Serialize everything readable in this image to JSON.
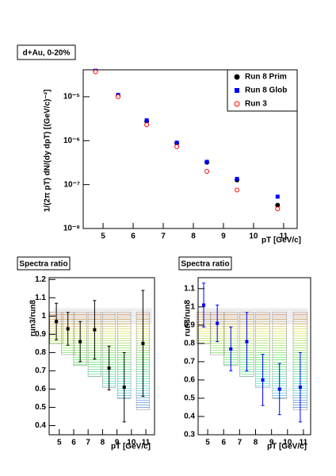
{
  "chart_data": [
    {
      "type": "scatter",
      "title": "d+Au, 0-20%",
      "x_label": "pT [GeV/c]",
      "y_label": "1/(2π pT) dN/(dy dpT) [(GeV/c)⁻²]",
      "x": [
        4.75,
        5.5,
        6.45,
        7.45,
        8.45,
        9.45,
        10.8
      ],
      "xlim": [
        4.34,
        11.45
      ],
      "xticks": [
        5,
        6,
        7,
        8,
        9,
        10,
        11
      ],
      "ylim": [
        1e-08,
        4.1e-05
      ],
      "log_y": true,
      "yticks": [
        {
          "value": 1e-08,
          "label": "10⁻⁸"
        },
        {
          "value": 1e-07,
          "label": "10⁻⁷"
        },
        {
          "value": 1e-06,
          "label": "10⁻⁶"
        },
        {
          "value": 1e-05,
          "label": "10⁻⁵"
        }
      ],
      "legend": "top-right",
      "series": [
        {
          "name": "Run 8 Prim",
          "color": "#000000",
          "marker": "circle",
          "values": [
            3.8e-05,
            1.04e-05,
            2.75e-06,
            8.7e-07,
            3.2e-07,
            1.27e-07,
            3.4e-08
          ]
        },
        {
          "name": "Run 8 Glob",
          "color": "#0000ff",
          "marker": "square",
          "values": [
            3.9e-05,
            1.1e-05,
            2.9e-06,
            9e-07,
            3.3e-07,
            1.35e-07,
            5.3e-08
          ]
        },
        {
          "name": "Run 3",
          "color": "#ff0000",
          "marker": "open-circle",
          "values": [
            3.7e-05,
            1e-05,
            2.3e-06,
            7.3e-07,
            2e-07,
            7.5e-08,
            2.8e-08
          ]
        }
      ]
    },
    {
      "type": "scatter",
      "title": "Spectra ratio",
      "x_label": "pT [GeV/c]",
      "y_label": "run3/run8",
      "x": [
        4.8,
        5.6,
        6.45,
        7.45,
        8.45,
        9.5,
        10.8
      ],
      "xlim": [
        4.3,
        11.6
      ],
      "xticks": [
        5,
        6,
        7,
        8,
        9,
        10,
        11
      ],
      "ylim": [
        0.35,
        1.21
      ],
      "yticks": [
        0.4,
        0.5,
        0.6,
        0.7,
        0.8,
        0.9,
        1,
        1.1,
        1.2
      ],
      "systematic_bands": true,
      "series": [
        {
          "color": "#000000",
          "marker": "square",
          "values": [
            0.97,
            0.93,
            0.86,
            0.925,
            0.715,
            0.61,
            0.85
          ],
          "errors": [
            0.1,
            0.09,
            0.11,
            0.16,
            0.12,
            0.19,
            0.29
          ]
        }
      ]
    },
    {
      "type": "scatter",
      "title": "Spectra ratio",
      "x_label": "pT [GeV/c]",
      "y_label": "run3/run8",
      "x": [
        4.75,
        5.6,
        6.45,
        7.45,
        8.45,
        9.5,
        10.8
      ],
      "xlim": [
        4.4,
        11.45
      ],
      "xticks": [
        5,
        6,
        7,
        8,
        9,
        10,
        11
      ],
      "ylim": [
        0.3,
        1.16
      ],
      "yticks": [
        0.3,
        0.4,
        0.5,
        0.6,
        0.7,
        0.8,
        0.9,
        1,
        1.1
      ],
      "systematic_bands": true,
      "series": [
        {
          "color": "#0000ff",
          "marker": "square",
          "values": [
            1.01,
            0.91,
            0.77,
            0.81,
            0.6,
            0.55,
            0.56
          ],
          "errors": [
            0.12,
            0.1,
            0.12,
            0.16,
            0.14,
            0.14,
            0.19
          ]
        }
      ]
    }
  ]
}
